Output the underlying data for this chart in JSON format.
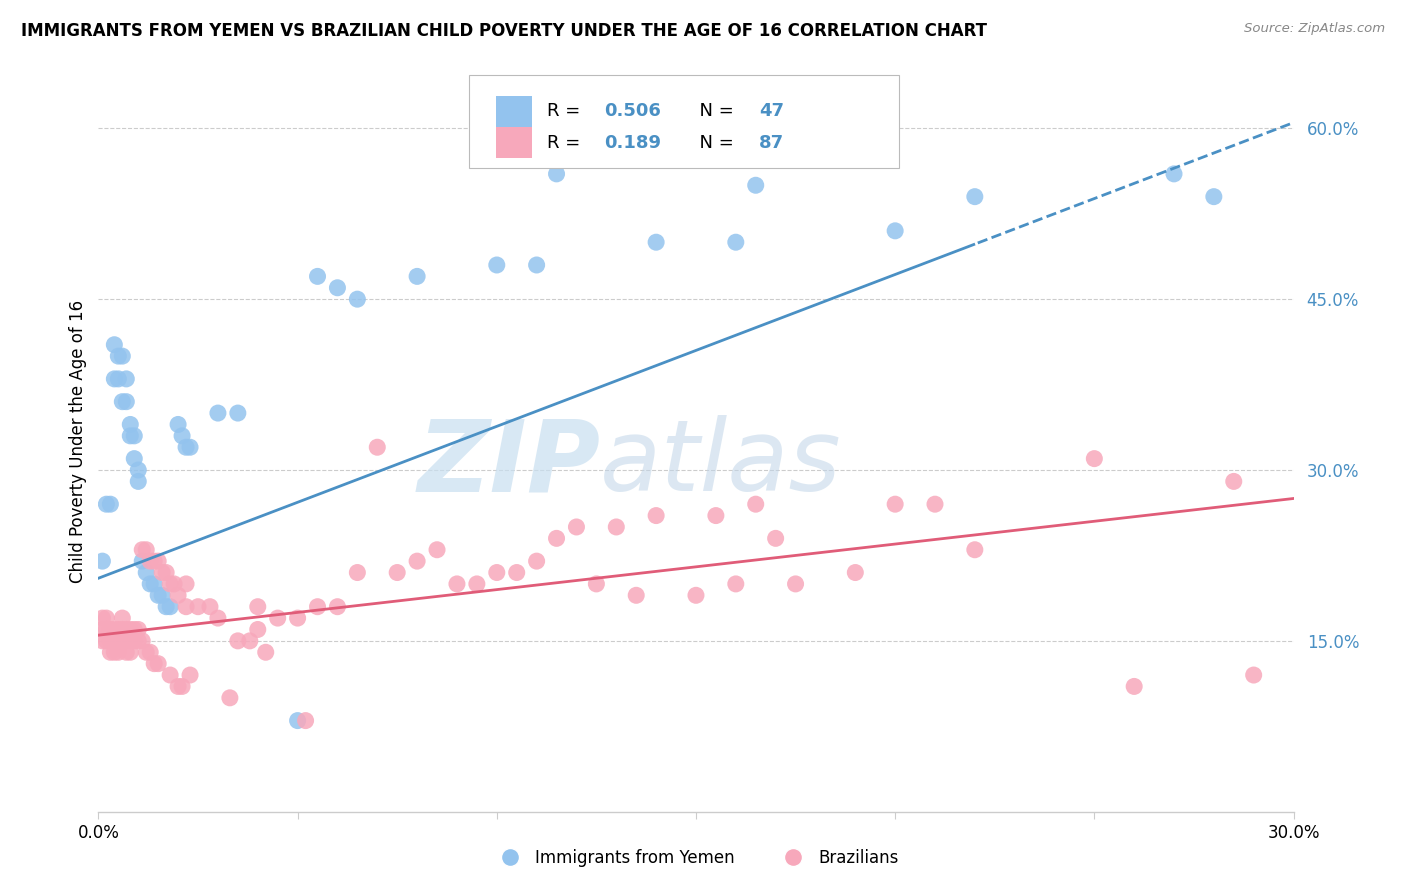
{
  "title": "IMMIGRANTS FROM YEMEN VS BRAZILIAN CHILD POVERTY UNDER THE AGE OF 16 CORRELATION CHART",
  "source": "Source: ZipAtlas.com",
  "ylabel": "Child Poverty Under the Age of 16",
  "xlim": [
    0.0,
    0.3
  ],
  "ylim": [
    0.0,
    0.65
  ],
  "x_ticks": [
    0.0,
    0.05,
    0.1,
    0.15,
    0.2,
    0.25,
    0.3
  ],
  "x_tick_labels": [
    "0.0%",
    "",
    "",
    "",
    "",
    "",
    "30.0%"
  ],
  "y_ticks_right": [
    0.15,
    0.3,
    0.45,
    0.6
  ],
  "y_tick_labels_right": [
    "15.0%",
    "30.0%",
    "45.0%",
    "60.0%"
  ],
  "color_yemen": "#93C3EE",
  "color_brazil": "#F7A8BB",
  "color_line_yemen": "#4A90C4",
  "color_line_brazil": "#E05C78",
  "color_right_axis": "#4A90C4",
  "yemen_line_x0": 0.0,
  "yemen_line_y0": 0.205,
  "yemen_line_x1": 0.3,
  "yemen_line_y1": 0.605,
  "yemen_line_solid_end": 0.22,
  "brazil_line_x0": 0.0,
  "brazil_line_y0": 0.155,
  "brazil_line_x1": 0.3,
  "brazil_line_y1": 0.275,
  "scatter_yemen": [
    [
      0.001,
      0.22
    ],
    [
      0.002,
      0.27
    ],
    [
      0.003,
      0.27
    ],
    [
      0.004,
      0.38
    ],
    [
      0.004,
      0.41
    ],
    [
      0.005,
      0.38
    ],
    [
      0.005,
      0.4
    ],
    [
      0.006,
      0.36
    ],
    [
      0.006,
      0.4
    ],
    [
      0.007,
      0.36
    ],
    [
      0.007,
      0.38
    ],
    [
      0.008,
      0.34
    ],
    [
      0.008,
      0.33
    ],
    [
      0.009,
      0.33
    ],
    [
      0.009,
      0.31
    ],
    [
      0.01,
      0.3
    ],
    [
      0.01,
      0.29
    ],
    [
      0.011,
      0.22
    ],
    [
      0.012,
      0.21
    ],
    [
      0.013,
      0.2
    ],
    [
      0.014,
      0.2
    ],
    [
      0.015,
      0.19
    ],
    [
      0.016,
      0.19
    ],
    [
      0.017,
      0.18
    ],
    [
      0.018,
      0.18
    ],
    [
      0.02,
      0.34
    ],
    [
      0.021,
      0.33
    ],
    [
      0.022,
      0.32
    ],
    [
      0.023,
      0.32
    ],
    [
      0.03,
      0.35
    ],
    [
      0.035,
      0.35
    ],
    [
      0.05,
      0.08
    ],
    [
      0.055,
      0.47
    ],
    [
      0.06,
      0.46
    ],
    [
      0.065,
      0.45
    ],
    [
      0.08,
      0.47
    ],
    [
      0.1,
      0.48
    ],
    [
      0.11,
      0.48
    ],
    [
      0.115,
      0.56
    ],
    [
      0.14,
      0.5
    ],
    [
      0.16,
      0.5
    ],
    [
      0.165,
      0.55
    ],
    [
      0.2,
      0.51
    ],
    [
      0.22,
      0.54
    ],
    [
      0.27,
      0.56
    ],
    [
      0.28,
      0.54
    ]
  ],
  "scatter_brazil": [
    [
      0.001,
      0.17
    ],
    [
      0.001,
      0.16
    ],
    [
      0.001,
      0.15
    ],
    [
      0.002,
      0.17
    ],
    [
      0.002,
      0.16
    ],
    [
      0.002,
      0.15
    ],
    [
      0.003,
      0.16
    ],
    [
      0.003,
      0.15
    ],
    [
      0.003,
      0.14
    ],
    [
      0.004,
      0.16
    ],
    [
      0.004,
      0.15
    ],
    [
      0.004,
      0.14
    ],
    [
      0.005,
      0.16
    ],
    [
      0.005,
      0.15
    ],
    [
      0.005,
      0.14
    ],
    [
      0.006,
      0.17
    ],
    [
      0.006,
      0.16
    ],
    [
      0.006,
      0.15
    ],
    [
      0.007,
      0.16
    ],
    [
      0.007,
      0.15
    ],
    [
      0.007,
      0.14
    ],
    [
      0.008,
      0.16
    ],
    [
      0.008,
      0.15
    ],
    [
      0.008,
      0.14
    ],
    [
      0.009,
      0.16
    ],
    [
      0.009,
      0.15
    ],
    [
      0.01,
      0.16
    ],
    [
      0.01,
      0.15
    ],
    [
      0.011,
      0.23
    ],
    [
      0.011,
      0.15
    ],
    [
      0.012,
      0.23
    ],
    [
      0.012,
      0.14
    ],
    [
      0.013,
      0.22
    ],
    [
      0.013,
      0.14
    ],
    [
      0.014,
      0.22
    ],
    [
      0.014,
      0.13
    ],
    [
      0.015,
      0.22
    ],
    [
      0.015,
      0.13
    ],
    [
      0.016,
      0.21
    ],
    [
      0.017,
      0.21
    ],
    [
      0.018,
      0.2
    ],
    [
      0.018,
      0.12
    ],
    [
      0.019,
      0.2
    ],
    [
      0.02,
      0.19
    ],
    [
      0.02,
      0.11
    ],
    [
      0.021,
      0.11
    ],
    [
      0.022,
      0.18
    ],
    [
      0.022,
      0.2
    ],
    [
      0.023,
      0.12
    ],
    [
      0.025,
      0.18
    ],
    [
      0.028,
      0.18
    ],
    [
      0.03,
      0.17
    ],
    [
      0.033,
      0.1
    ],
    [
      0.035,
      0.15
    ],
    [
      0.038,
      0.15
    ],
    [
      0.04,
      0.18
    ],
    [
      0.04,
      0.16
    ],
    [
      0.042,
      0.14
    ],
    [
      0.045,
      0.17
    ],
    [
      0.05,
      0.17
    ],
    [
      0.052,
      0.08
    ],
    [
      0.055,
      0.18
    ],
    [
      0.06,
      0.18
    ],
    [
      0.065,
      0.21
    ],
    [
      0.07,
      0.32
    ],
    [
      0.075,
      0.21
    ],
    [
      0.08,
      0.22
    ],
    [
      0.085,
      0.23
    ],
    [
      0.09,
      0.2
    ],
    [
      0.095,
      0.2
    ],
    [
      0.1,
      0.21
    ],
    [
      0.105,
      0.21
    ],
    [
      0.11,
      0.22
    ],
    [
      0.115,
      0.24
    ],
    [
      0.12,
      0.25
    ],
    [
      0.125,
      0.2
    ],
    [
      0.13,
      0.25
    ],
    [
      0.135,
      0.19
    ],
    [
      0.14,
      0.26
    ],
    [
      0.15,
      0.19
    ],
    [
      0.155,
      0.26
    ],
    [
      0.16,
      0.2
    ],
    [
      0.165,
      0.27
    ],
    [
      0.17,
      0.24
    ],
    [
      0.175,
      0.2
    ],
    [
      0.19,
      0.21
    ],
    [
      0.2,
      0.27
    ],
    [
      0.21,
      0.27
    ],
    [
      0.22,
      0.23
    ],
    [
      0.25,
      0.31
    ],
    [
      0.26,
      0.11
    ],
    [
      0.285,
      0.29
    ],
    [
      0.29,
      0.12
    ]
  ]
}
